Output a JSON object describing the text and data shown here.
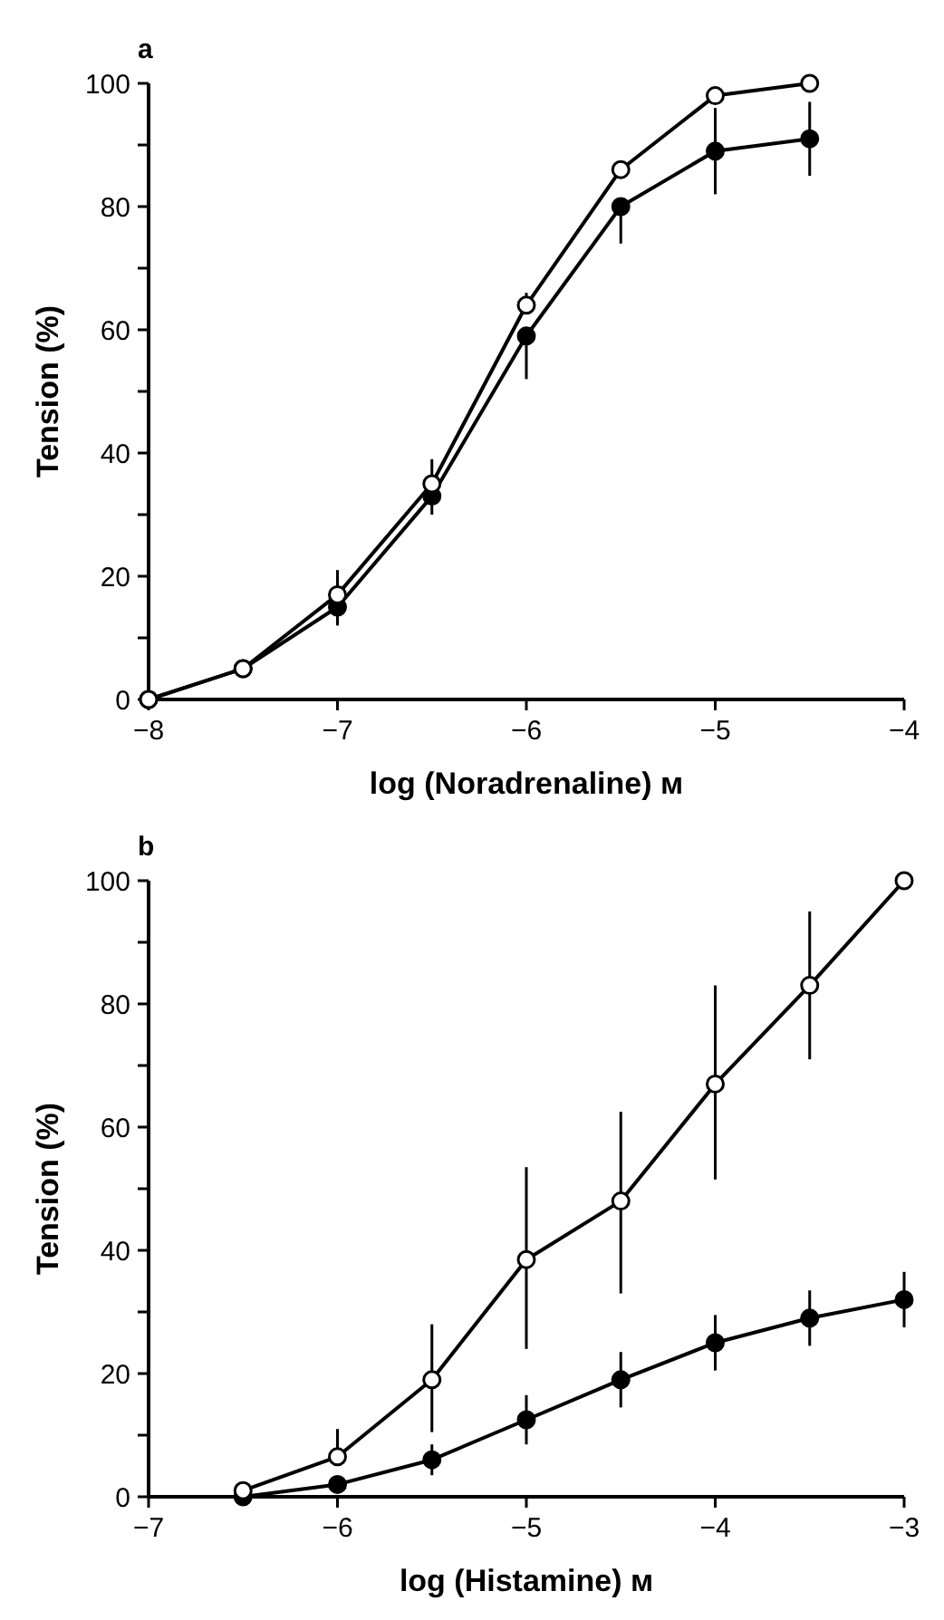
{
  "chart_data": [
    {
      "type": "line",
      "title": "a",
      "xlabel": "log (Noradrenaline) м",
      "ylabel": "Tension (%)",
      "x": [
        -8,
        -7.5,
        -7,
        -6.5,
        -6,
        -5.5,
        -5,
        -4.5
      ],
      "xlim": [
        -8,
        -4
      ],
      "xticks": [
        {
          "value": -8,
          "label": "−8"
        },
        {
          "value": -7,
          "label": "−7"
        },
        {
          "value": -6,
          "label": "−6"
        },
        {
          "value": -5,
          "label": "−5"
        },
        {
          "value": -4,
          "label": "−4"
        }
      ],
      "ylim": [
        0,
        100
      ],
      "yticks": [
        0,
        {
          "value": 10,
          "label": null
        },
        20,
        {
          "value": 30,
          "label": null
        },
        40,
        {
          "value": 50,
          "label": null
        },
        60,
        {
          "value": 70,
          "label": null
        },
        80,
        {
          "value": 90,
          "label": null
        },
        100
      ],
      "marker": "circle",
      "series": [
        {
          "color": "#000000",
          "values": [
            0,
            5,
            17,
            35,
            64,
            86,
            98,
            100
          ],
          "errors": [
            null,
            null,
            [
              17,
              21
            ],
            [
              35,
              39
            ],
            [
              64,
              66
            ],
            null,
            null,
            null
          ]
        },
        {
          "color": "#000000",
          "values": [
            0,
            5,
            15,
            33,
            59,
            80,
            89,
            91
          ],
          "errors": [
            null,
            null,
            [
              12,
              15
            ],
            [
              30,
              33
            ],
            [
              52,
              59
            ],
            [
              74,
              80
            ],
            [
              82,
              96
            ],
            [
              85,
              97
            ]
          ]
        }
      ]
    },
    {
      "type": "line",
      "title": "b",
      "xlabel": "log (Histamine) м",
      "ylabel": "Tension (%)",
      "x": [
        -6.5,
        -6,
        -5.5,
        -5,
        -4.5,
        -4,
        -3.5,
        -3
      ],
      "xlim": [
        -7,
        -3
      ],
      "xticks": [
        {
          "value": -7,
          "label": "−7"
        },
        {
          "value": -6,
          "label": "−6"
        },
        {
          "value": -5,
          "label": "−5"
        },
        {
          "value": -4,
          "label": "−4"
        },
        {
          "value": -3,
          "label": "−3"
        }
      ],
      "ylim": [
        0,
        100
      ],
      "yticks": [
        0,
        {
          "value": 10,
          "label": null
        },
        20,
        {
          "value": 30,
          "label": null
        },
        40,
        {
          "value": 50,
          "label": null
        },
        60,
        {
          "value": 70,
          "label": null
        },
        80,
        {
          "value": 90,
          "label": null
        },
        100
      ],
      "marker": "circle",
      "series": [
        {
          "color": "#000000",
          "values": [
            1,
            6.5,
            19,
            38.5,
            48,
            67,
            83,
            100
          ],
          "errors": [
            null,
            [
              6.5,
              11
            ],
            [
              10.5,
              28
            ],
            [
              24,
              53.5
            ],
            [
              33,
              62.5
            ],
            [
              51.5,
              83
            ],
            [
              71,
              95
            ],
            null
          ]
        },
        {
          "color": "#000000",
          "values": [
            0,
            2,
            6,
            12.5,
            19,
            25,
            29,
            32
          ],
          "errors": [
            null,
            null,
            [
              3.5,
              8.5
            ],
            [
              8.5,
              16.5
            ],
            [
              14.5,
              23.5
            ],
            [
              20.5,
              29.5
            ],
            [
              24.5,
              33.5
            ],
            [
              27.5,
              36.5
            ]
          ]
        }
      ]
    }
  ]
}
